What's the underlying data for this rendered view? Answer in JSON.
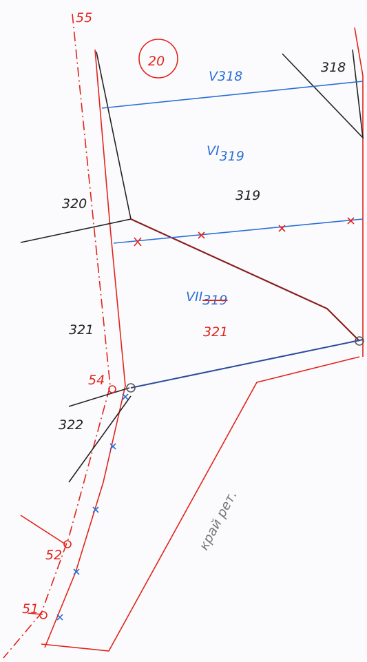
{
  "sheet_number": "20",
  "stations": [
    {
      "label": "55"
    },
    {
      "label": "54"
    },
    {
      "label": "52"
    },
    {
      "label": "51"
    }
  ],
  "sections": [
    {
      "label": "318"
    },
    {
      "label": "319"
    },
    {
      "label": "320"
    },
    {
      "label": "321"
    },
    {
      "label": "322"
    }
  ],
  "compartments": [
    {
      "roman": "V",
      "number": "318"
    },
    {
      "roman": "VI",
      "number": "319"
    },
    {
      "roman": "VII",
      "number": "319",
      "struck": true,
      "new_number": "321"
    }
  ],
  "edge_note": "край рет."
}
